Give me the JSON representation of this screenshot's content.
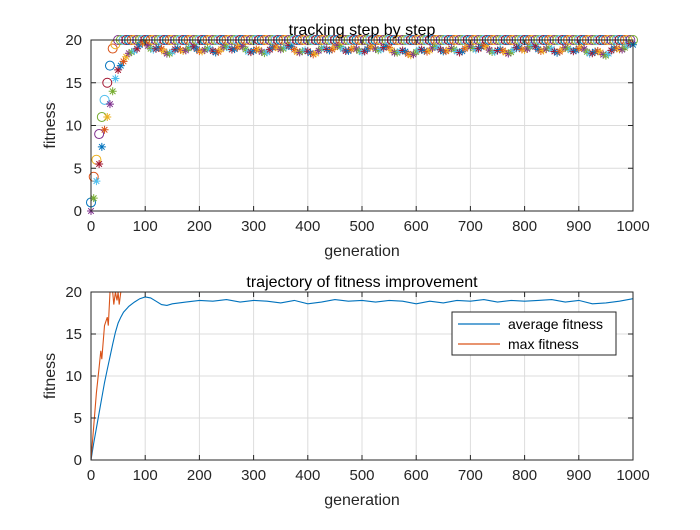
{
  "chart_data": [
    {
      "type": "scatter",
      "title": "tracking step by step",
      "xlabel": "generation",
      "ylabel": "fitness",
      "xlim": [
        0,
        1000
      ],
      "ylim": [
        0,
        20
      ],
      "xticks": [
        "0",
        "100",
        "200",
        "300",
        "400",
        "500",
        "600",
        "700",
        "800",
        "900",
        "1000"
      ],
      "yticks": [
        "0",
        "5",
        "10",
        "15",
        "20"
      ],
      "grid": true,
      "markers": {
        "max_fitness": {
          "symbol": "circle",
          "x": [
            0,
            5,
            10,
            15,
            20,
            25,
            30,
            35,
            40,
            45,
            50,
            60,
            70,
            80,
            90,
            100,
            150,
            200,
            250,
            300,
            350,
            400,
            450,
            500,
            550,
            600,
            650,
            700,
            750,
            800,
            850,
            900,
            950,
            1000
          ],
          "y": [
            1,
            4,
            6,
            9,
            11,
            13,
            15,
            17,
            19,
            19.5,
            20,
            20,
            20,
            20,
            20,
            20,
            20,
            20,
            20,
            20,
            20,
            20,
            20,
            20,
            20,
            20,
            20,
            20,
            20,
            20,
            20,
            20,
            20,
            20
          ]
        },
        "average_fitness": {
          "symbol": "asterisk",
          "x": [
            0,
            5,
            10,
            15,
            20,
            25,
            30,
            35,
            40,
            45,
            50,
            60,
            70,
            80,
            90,
            100,
            150,
            200,
            250,
            300,
            350,
            400,
            450,
            500,
            550,
            600,
            650,
            700,
            750,
            800,
            850,
            900,
            950,
            1000
          ],
          "y": [
            0,
            1.5,
            3.5,
            5.5,
            7.5,
            9.5,
            11,
            12.5,
            14,
            15.5,
            16.5,
            17.5,
            18.2,
            18.8,
            19.2,
            19.3,
            18.7,
            18.9,
            19,
            18.8,
            19,
            18.7,
            18.9,
            19,
            18.8,
            18.6,
            18.9,
            19,
            18.8,
            18.9,
            19,
            18.7,
            18.6,
            19.2
          ]
        }
      },
      "marker_colors": [
        "#0072bd",
        "#d95319",
        "#edb120",
        "#7e2f8e",
        "#77ac30",
        "#4dbeee",
        "#a2142f"
      ]
    },
    {
      "type": "line",
      "title": "trajectory of fitness improvement",
      "xlabel": "generation",
      "ylabel": "fitness",
      "xlim": [
        0,
        1000
      ],
      "ylim": [
        0,
        20
      ],
      "xticks": [
        "0",
        "100",
        "200",
        "300",
        "400",
        "500",
        "600",
        "700",
        "800",
        "900",
        "1000"
      ],
      "yticks": [
        "0",
        "5",
        "10",
        "15",
        "20"
      ],
      "grid": true,
      "legend_position": "top-right",
      "series": [
        {
          "name": "average fitness",
          "color": "#0072bd",
          "x": [
            0,
            5,
            10,
            15,
            20,
            25,
            30,
            35,
            40,
            45,
            50,
            55,
            60,
            70,
            80,
            90,
            100,
            110,
            120,
            130,
            140,
            150,
            175,
            200,
            225,
            250,
            275,
            300,
            325,
            350,
            375,
            400,
            425,
            450,
            475,
            500,
            525,
            550,
            575,
            600,
            625,
            650,
            675,
            700,
            725,
            750,
            775,
            800,
            825,
            850,
            875,
            900,
            925,
            950,
            975,
            1000
          ],
          "y": [
            0,
            2,
            3.8,
            5.6,
            7.4,
            9.2,
            10.8,
            12.3,
            13.8,
            15.2,
            16.3,
            17,
            17.6,
            18.3,
            18.8,
            19.2,
            19.4,
            19.3,
            18.9,
            18.5,
            18.4,
            18.6,
            18.8,
            19,
            18.9,
            19.1,
            18.8,
            19,
            18.9,
            18.7,
            19,
            18.6,
            18.8,
            19.1,
            18.9,
            19,
            18.8,
            19,
            18.9,
            18.6,
            18.9,
            18.7,
            19,
            18.9,
            19.1,
            18.8,
            19,
            18.9,
            19,
            19.1,
            18.8,
            19,
            18.6,
            18.7,
            18.9,
            19.2
          ]
        },
        {
          "name": "max fitness",
          "color": "#d95319",
          "x": [
            0,
            5,
            10,
            15,
            18,
            20,
            25,
            30,
            32,
            35,
            40,
            42,
            45,
            48,
            50,
            52,
            55,
            1000
          ],
          "y": [
            0,
            4,
            8,
            11,
            13,
            12,
            16,
            17,
            16,
            20,
            20,
            18.5,
            20,
            19,
            20,
            18.5,
            20,
            20
          ]
        }
      ]
    }
  ]
}
